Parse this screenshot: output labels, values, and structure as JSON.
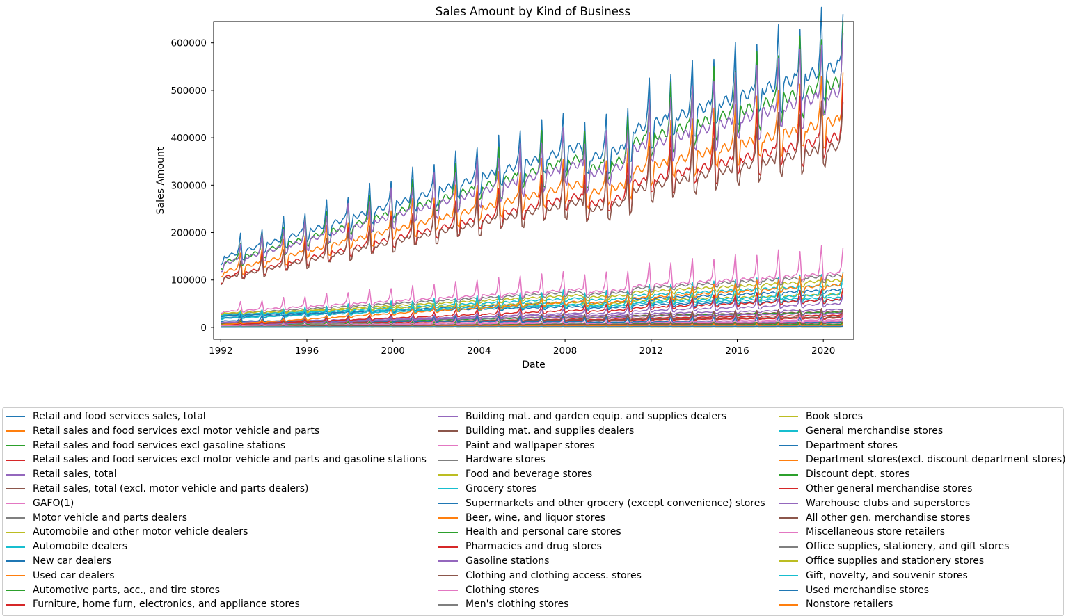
{
  "palette": [
    "#1f77b4",
    "#ff7f0e",
    "#2ca02c",
    "#d62728",
    "#9467bd",
    "#8c564b",
    "#e377c2",
    "#7f7f7f",
    "#bcbd22",
    "#17becf"
  ],
  "chart_data": {
    "type": "line",
    "title": "Sales Amount by Kind of Business",
    "xlabel": "Date",
    "ylabel": "Sales Amount",
    "xlim": [
      "1991-09",
      "2021-06"
    ],
    "ylim": [
      -25000,
      645000
    ],
    "xticks": [
      "1992",
      "1996",
      "2000",
      "2004",
      "2008",
      "2012",
      "2016",
      "2020"
    ],
    "yticks": [
      "0",
      "100000",
      "200000",
      "300000",
      "400000",
      "500000",
      "600000"
    ],
    "x_range": [
      "1992-01",
      "2020-12"
    ],
    "frequency": "monthly",
    "legend_position": "below-plot",
    "grid": false,
    "series": [
      {
        "name": "Retail and food services sales, total",
        "values_start": 146000,
        "values_end": 555000,
        "december_peak": 1.22
      },
      {
        "name": "Retail sales and food services excl motor vehicle and parts",
        "values_start": 116000,
        "values_end": 440000,
        "december_peak": 1.23
      },
      {
        "name": "Retail sales and food services excl gasoline stations",
        "values_start": 135000,
        "values_end": 520000,
        "december_peak": 1.22
      },
      {
        "name": "Retail sales and food services excl motor vehicle and parts and gasoline stations",
        "values_start": 104000,
        "values_end": 405000,
        "december_peak": 1.24
      },
      {
        "name": "Retail sales, total",
        "values_start": 133000,
        "values_end": 500000,
        "december_peak": 1.23
      },
      {
        "name": "Retail sales, total (excl. motor vehicle and parts dealers)",
        "values_start": 102000,
        "values_end": 385000,
        "december_peak": 1.25
      },
      {
        "name": "GAFO(1)",
        "values_start": 33000,
        "values_end": 115000,
        "december_peak": 1.5
      },
      {
        "name": "Motor vehicle and parts dealers",
        "values_start": 28000,
        "values_end": 110000,
        "december_peak": 1.0
      },
      {
        "name": "Automobile and other motor vehicle dealers",
        "values_start": 25000,
        "values_end": 100000,
        "december_peak": 1.0
      },
      {
        "name": "Automobile dealers",
        "values_start": 23000,
        "values_end": 90000,
        "december_peak": 1.0
      },
      {
        "name": "New car dealers",
        "values_start": 20000,
        "values_end": 80000,
        "december_peak": 1.0
      },
      {
        "name": "Used car dealers",
        "values_start": 2500,
        "values_end": 11000,
        "december_peak": 1.0
      },
      {
        "name": "Automotive parts, acc., and tire stores",
        "values_start": 5000,
        "values_end": 11000,
        "december_peak": 1.05
      },
      {
        "name": "Furniture, home furn, electronics, and appliance stores",
        "values_start": 8000,
        "values_end": 20000,
        "december_peak": 1.4
      },
      {
        "name": "Building mat. and garden equip. and supplies dealers",
        "values_start": 11000,
        "values_end": 38000,
        "december_peak": 1.0
      },
      {
        "name": "Building mat. and supplies dealers",
        "values_start": 9000,
        "values_end": 33000,
        "december_peak": 1.0
      },
      {
        "name": "Paint and wallpaper stores",
        "values_start": 500,
        "values_end": 1200,
        "december_peak": 1.0
      },
      {
        "name": "Hardware stores",
        "values_start": 1100,
        "values_end": 2500,
        "december_peak": 1.1
      },
      {
        "name": "Food and beverage stores",
        "values_start": 30000,
        "values_end": 70000,
        "december_peak": 1.12
      },
      {
        "name": "Grocery stores",
        "values_start": 27000,
        "values_end": 63000,
        "december_peak": 1.1
      },
      {
        "name": "Supermarkets and other grocery (except convenience) stores",
        "values_start": 25000,
        "values_end": 58000,
        "december_peak": 1.1
      },
      {
        "name": "Beer, wine, and liquor stores",
        "values_start": 2000,
        "values_end": 5000,
        "december_peak": 1.4
      },
      {
        "name": "Health and personal care stores",
        "values_start": 7500,
        "values_end": 32000,
        "december_peak": 1.15
      },
      {
        "name": "Pharmacies and drug stores",
        "values_start": 6500,
        "values_end": 26000,
        "december_peak": 1.12
      },
      {
        "name": "Gasoline stations",
        "values_start": 11000,
        "values_end": 30000,
        "december_peak": 1.0
      },
      {
        "name": "Clothing and clothing access. stores",
        "values_start": 9000,
        "values_end": 22000,
        "december_peak": 1.8
      },
      {
        "name": "Clothing stores",
        "values_start": 6000,
        "values_end": 16000,
        "december_peak": 1.7
      },
      {
        "name": "Men's clothing stores",
        "values_start": 800,
        "values_end": 500,
        "december_peak": 1.9
      },
      {
        "name": "Book stores",
        "values_start": 600,
        "values_end": 700,
        "december_peak": 1.5
      },
      {
        "name": "General merchandise stores",
        "values_start": 19000,
        "values_end": 70000,
        "december_peak": 1.65
      },
      {
        "name": "Department stores",
        "values_start": 14000,
        "values_end": 11000,
        "december_peak": 1.9
      },
      {
        "name": "Department stores(excl. discount department stores)",
        "values_start": 7000,
        "values_end": 4000,
        "december_peak": 2.0
      },
      {
        "name": "Discount dept. stores",
        "values_start": 7000,
        "values_end": 6000,
        "december_peak": 1.8
      },
      {
        "name": "Other general merchandise stores",
        "values_start": 5000,
        "values_end": 59000,
        "december_peak": 1.4
      },
      {
        "name": "Warehouse clubs and superstores",
        "values_start": 3000,
        "values_end": 50000,
        "december_peak": 1.35
      },
      {
        "name": "All other gen. merchandise stores",
        "values_start": 2000,
        "values_end": 9000,
        "december_peak": 1.3
      },
      {
        "name": "Miscellaneous store retailers",
        "values_start": 4000,
        "values_end": 13000,
        "december_peak": 1.3
      },
      {
        "name": "Office supplies, stationery, and gift stores",
        "values_start": 1500,
        "values_end": 2500,
        "december_peak": 1.4
      },
      {
        "name": "Office supplies and stationery stores",
        "values_start": 900,
        "values_end": 1000,
        "december_peak": 1.2
      },
      {
        "name": "Gift, novelty, and souvenir stores",
        "values_start": 800,
        "values_end": 1200,
        "december_peak": 1.7
      },
      {
        "name": "Used merchandise stores",
        "values_start": 400,
        "values_end": 1800,
        "december_peak": 1.1
      },
      {
        "name": "Nonstore retailers",
        "values_start": 6000,
        "values_end": 90000,
        "december_peak": 1.25
      }
    ]
  }
}
